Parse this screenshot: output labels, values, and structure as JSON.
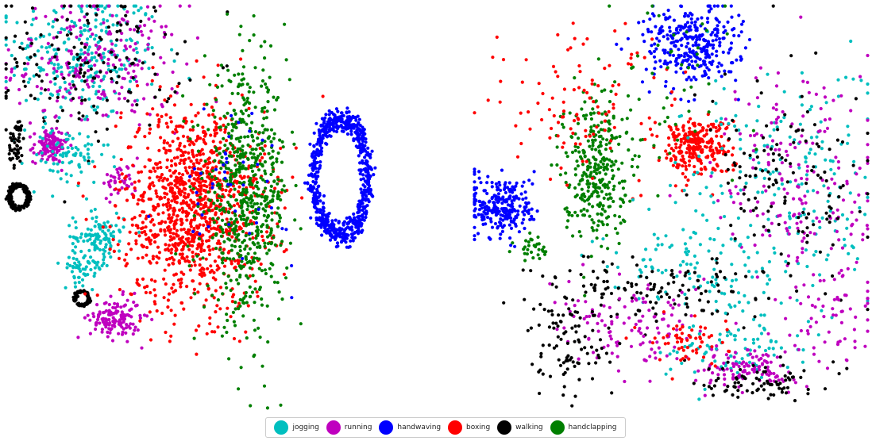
{
  "chart_data": [
    {
      "type": "scatter",
      "title": "",
      "xlabel": "",
      "ylabel": "",
      "axes": "off",
      "grid": false,
      "description_of_layout": "",
      "clusters": [
        {
          "series": "jogging",
          "cx": -62,
          "cy": 75,
          "sx": 18,
          "sy": 16,
          "n": 260
        },
        {
          "series": "running",
          "cx": -55,
          "cy": 70,
          "sx": 20,
          "sy": 16,
          "n": 240
        },
        {
          "series": "walking",
          "cx": -60,
          "cy": 72,
          "sx": 22,
          "sy": 18,
          "n": 150
        },
        {
          "series": "running",
          "cx": -78,
          "cy": 30,
          "sx": 4,
          "sy": 4,
          "n": 120
        },
        {
          "series": "jogging",
          "cx": -70,
          "cy": 25,
          "sx": 10,
          "sy": 8,
          "n": 80
        },
        {
          "series": "walking",
          "cx": -93,
          "cy": 5,
          "sx": 4,
          "sy": 5,
          "n": 170,
          "shape": "ring"
        },
        {
          "series": "walking",
          "cx": -94,
          "cy": 32,
          "sx": 2,
          "sy": 6,
          "n": 50
        },
        {
          "series": "jogging",
          "cx": -55,
          "cy": -15,
          "sx": 6,
          "sy": 6,
          "n": 120
        },
        {
          "series": "jogging",
          "cx": -62,
          "cy": -30,
          "sx": 5,
          "sy": 4,
          "n": 50
        },
        {
          "series": "walking",
          "cx": -63,
          "cy": -45,
          "sx": 3,
          "sy": 3,
          "n": 80,
          "shape": "ring"
        },
        {
          "series": "running",
          "cx": -47,
          "cy": -55,
          "sx": 6,
          "sy": 5,
          "n": 140
        },
        {
          "series": "running",
          "cx": -45,
          "cy": 13,
          "sx": 4,
          "sy": 4,
          "n": 40
        },
        {
          "series": "boxing",
          "cx": -10,
          "cy": 0,
          "sx": 17,
          "sy": 25,
          "n": 1100
        },
        {
          "series": "handclapping",
          "cx": 15,
          "cy": 5,
          "sx": 10,
          "sy": 30,
          "n": 650
        },
        {
          "series": "handwaving",
          "cx": 60,
          "cy": 15,
          "sx": 11,
          "sy": 25,
          "n": 700,
          "shape": "ring"
        },
        {
          "series": "handwaving",
          "cx": 10,
          "cy": 10,
          "sx": 14,
          "sy": 20,
          "n": 45
        }
      ]
    },
    {
      "type": "scatter",
      "title": "",
      "xlabel": "",
      "ylabel": "",
      "axes": "off",
      "grid": false,
      "clusters": [
        {
          "series": "handwaving",
          "cx": 10,
          "cy": 80,
          "sx": 12,
          "sy": 10,
          "n": 320
        },
        {
          "series": "handwaving",
          "cx": -85,
          "cy": 0,
          "sx": 8,
          "sy": 8,
          "n": 260
        },
        {
          "series": "handclapping",
          "cx": -38,
          "cy": 20,
          "sx": 8,
          "sy": 18,
          "n": 320
        },
        {
          "series": "boxing",
          "cx": 12,
          "cy": 30,
          "sx": 9,
          "sy": 7,
          "n": 260
        },
        {
          "series": "boxing",
          "cx": -45,
          "cy": 50,
          "sx": 25,
          "sy": 20,
          "n": 110
        },
        {
          "series": "jogging",
          "cx": 55,
          "cy": 10,
          "sx": 25,
          "sy": 30,
          "n": 200
        },
        {
          "series": "running",
          "cx": 65,
          "cy": 15,
          "sx": 22,
          "sy": 28,
          "n": 180
        },
        {
          "series": "walking",
          "cx": 60,
          "cy": 10,
          "sx": 20,
          "sy": 25,
          "n": 130
        },
        {
          "series": "jogging",
          "cx": 10,
          "cy": -30,
          "sx": 25,
          "sy": 10,
          "n": 100
        },
        {
          "series": "walking",
          "cx": -10,
          "cy": -40,
          "sx": 28,
          "sy": 8,
          "n": 130
        },
        {
          "series": "running",
          "cx": -20,
          "cy": -60,
          "sx": 20,
          "sy": 10,
          "n": 120
        },
        {
          "series": "walking",
          "cx": -50,
          "cy": -70,
          "sx": 10,
          "sy": 12,
          "n": 90
        },
        {
          "series": "jogging",
          "cx": 30,
          "cy": -70,
          "sx": 18,
          "sy": 8,
          "n": 90
        },
        {
          "series": "running",
          "cx": 40,
          "cy": -80,
          "sx": 12,
          "sy": 5,
          "n": 110
        },
        {
          "series": "walking",
          "cx": 45,
          "cy": -85,
          "sx": 14,
          "sy": 5,
          "n": 80
        },
        {
          "series": "boxing",
          "cx": 10,
          "cy": -65,
          "sx": 10,
          "sy": 6,
          "n": 60
        },
        {
          "series": "running",
          "cx": 80,
          "cy": -50,
          "sx": 12,
          "sy": 15,
          "n": 70
        },
        {
          "series": "handclapping",
          "cx": 0,
          "cy": 60,
          "sx": 20,
          "sy": 25,
          "n": 50
        },
        {
          "series": "handclapping",
          "cx": -70,
          "cy": -20,
          "sx": 4,
          "sy": 4,
          "n": 30
        }
      ]
    }
  ],
  "legend": {
    "placement": "bottom-center",
    "items": [
      {
        "label": "jogging",
        "color": "#00bfbf"
      },
      {
        "label": "running",
        "color": "#bf00bf"
      },
      {
        "label": "handwaving",
        "color": "#0000ff"
      },
      {
        "label": "boxing",
        "color": "#ff0000"
      },
      {
        "label": "walking",
        "color": "#000000"
      },
      {
        "label": "handclapping",
        "color": "#007f00"
      }
    ]
  }
}
